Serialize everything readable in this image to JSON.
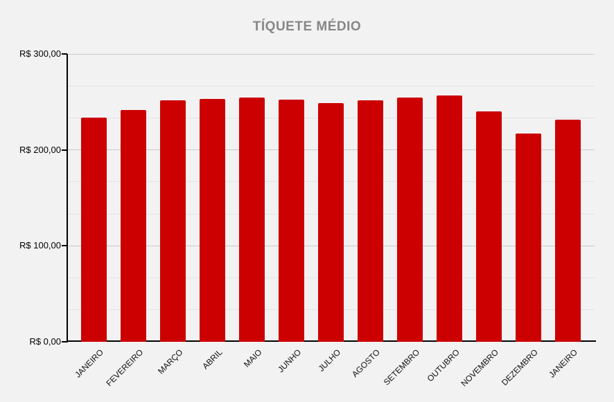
{
  "chart_data": {
    "type": "bar",
    "title": "TÍQUETE MÉDIO",
    "categories": [
      "JANEIRO",
      "FEVEREIRO",
      "MARÇO",
      "ABRIL",
      "MAIO",
      "JUNHO",
      "JULHO",
      "AGOSTO",
      "SETEMBRO",
      "OUTUBRO",
      "NOVEMBRO",
      "DEZEMBRO",
      "JANEIRO"
    ],
    "values": [
      233.7,
      241.4,
      251.7,
      252.9,
      254.8,
      252.2,
      248.6,
      251.7,
      254.8,
      256.5,
      240.1,
      217.3,
      231.3
    ],
    "xlabel": "",
    "ylabel": "",
    "ylim": [
      0,
      300
    ],
    "y_ticks": [
      {
        "label": "R$ 300,00",
        "value": 300
      },
      {
        "label": "R$ 200,00",
        "value": 200
      },
      {
        "label": "R$ 100,00",
        "value": 100
      },
      {
        "label": "R$ 0,00",
        "value": 0
      }
    ],
    "currency_prefix": "R$",
    "grid": "major-and-minor",
    "minor_gridlines_per_major": 2,
    "legend": "none",
    "x_label_rotation_deg": 45,
    "bar_color": "#cc0000",
    "title_color": "#878787",
    "background_color": "#f2f2f2",
    "axis_color": "#000000",
    "major_grid_color": "#c9c9c9",
    "minor_grid_color": "#e3e3e3"
  }
}
